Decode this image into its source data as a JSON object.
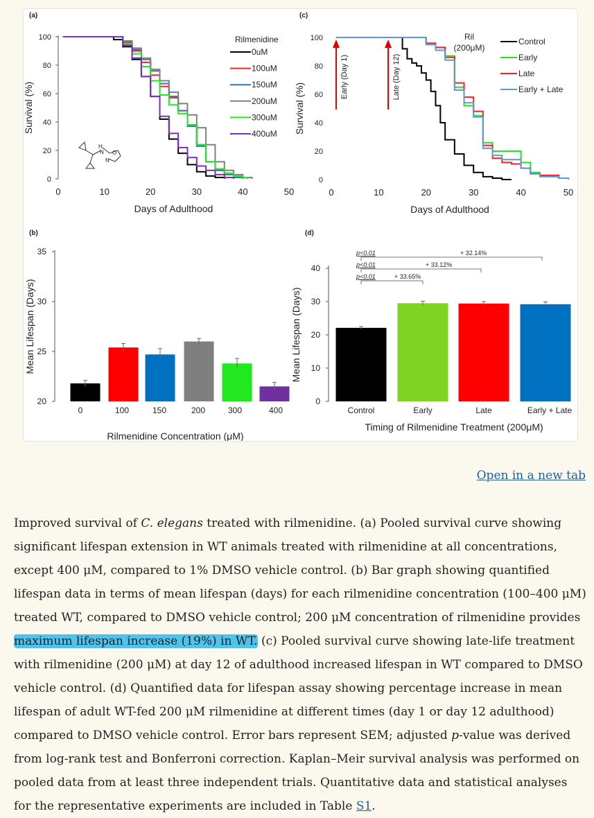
{
  "open_link": "Open in a new tab",
  "caption": {
    "p1": "Improved survival of ",
    "species": "C. elegans",
    "p2": " treated with rilmenidine. (a) Pooled survival curve showing significant lifespan extension in WT animals treated with rilmenidine at all concentrations, except 400 μM, compared to 1% DMSO vehicle control. (b) Bar graph showing quantified lifespan data in terms of mean lifespan (days) for each rilmenidine concentration (100–400 μM) treated WT, compared to DMSO vehicle control; 200 μM concentration of rilmenidine provides ",
    "highlight": "maximum lifespan increase (19%) in WT.",
    "p3": " (c) Pooled survival curve showing late-life treatment with rilmenidine (200 μM) at day 12 of adulthood increased lifespan in WT compared to DMSO vehicle control. (d) Quantified data for lifespan assay showing percentage increase in mean lifespan of adult WT-fed 200 μM rilmenidine at different times (day 1 or day 12 adulthood) compared to DMSO vehicle control. Error bars represent SEM; adjusted ",
    "pitalic": "p",
    "p4": "-value was derived from log-rank test and Bonferroni correction. Kaplan–Meir survival analysis was performed on pooled data from at least three independent trials. Quantitative data and statistical analyses for the representative experiments are included in Table ",
    "table_link": "S1",
    "p5": "."
  },
  "chart_data": [
    {
      "panel": "(a)",
      "type": "line",
      "xlabel": "Days of Adulthood",
      "ylabel": "Survival (%)",
      "xlim": [
        0,
        50
      ],
      "ylim": [
        0,
        100
      ],
      "xticks": [
        0,
        10,
        20,
        30,
        40,
        50
      ],
      "yticks": [
        0,
        20,
        40,
        60,
        80,
        100
      ],
      "legend_title": "Rilmenidine",
      "legend_position": "top-right",
      "series": [
        {
          "name": "0uM",
          "color": "#000000",
          "x": [
            1,
            10,
            12,
            14,
            16,
            18,
            20,
            22,
            24,
            26,
            28,
            30,
            32,
            34,
            36
          ],
          "y": [
            100,
            100,
            98,
            93,
            84,
            72,
            58,
            42,
            28,
            18,
            10,
            5,
            2,
            1,
            0
          ]
        },
        {
          "name": "100uM",
          "color": "#ff1f1f",
          "x": [
            1,
            12,
            14,
            16,
            18,
            20,
            22,
            24,
            26,
            28,
            30,
            32,
            34,
            36,
            38,
            40
          ],
          "y": [
            100,
            100,
            96,
            90,
            82,
            73,
            65,
            57,
            48,
            38,
            24,
            12,
            6,
            3,
            1,
            0
          ]
        },
        {
          "name": "150uM",
          "color": "#2f75c6",
          "x": [
            1,
            12,
            14,
            16,
            18,
            20,
            22,
            24,
            26,
            28,
            30,
            32,
            34,
            36,
            38,
            40
          ],
          "y": [
            100,
            100,
            97,
            91,
            84,
            76,
            67,
            58,
            48,
            37,
            23,
            12,
            6,
            3,
            1,
            0
          ]
        },
        {
          "name": "200uM",
          "color": "#808080",
          "x": [
            1,
            12,
            14,
            16,
            18,
            20,
            22,
            24,
            26,
            28,
            30,
            32,
            34,
            36,
            38,
            40,
            42
          ],
          "y": [
            100,
            100,
            97,
            92,
            85,
            77,
            69,
            61,
            53,
            45,
            36,
            24,
            12,
            6,
            3,
            1,
            0
          ]
        },
        {
          "name": "300uM",
          "color": "#1ee81e",
          "x": [
            1,
            12,
            14,
            16,
            18,
            20,
            22,
            24,
            26,
            28,
            30,
            32,
            34,
            36,
            38,
            40,
            41
          ],
          "y": [
            100,
            100,
            95,
            88,
            79,
            69,
            59,
            52,
            46,
            38,
            24,
            12,
            7,
            4,
            2,
            1,
            0
          ]
        },
        {
          "name": "400uM",
          "color": "#7a2fc4",
          "x": [
            1,
            12,
            14,
            16,
            18,
            20,
            22,
            24,
            26,
            28,
            30,
            32,
            34,
            36,
            38
          ],
          "y": [
            100,
            100,
            94,
            85,
            72,
            58,
            44,
            32,
            22,
            15,
            9,
            6,
            3,
            1,
            0
          ]
        }
      ],
      "annotation": "Rilmenidine structure (drawn)"
    },
    {
      "panel": "(b)",
      "type": "bar",
      "xlabel": "Rilmenidine Concentration (μM)",
      "ylabel": "Mean Lifespan (Days)",
      "ylim": [
        20,
        35
      ],
      "yticks": [
        20,
        25,
        30,
        35
      ],
      "categories": [
        "0",
        "100",
        "150",
        "200",
        "300",
        "400"
      ],
      "values": [
        21.8,
        25.4,
        24.7,
        26.0,
        23.8,
        21.5
      ],
      "errors": [
        0.3,
        0.4,
        0.6,
        0.3,
        0.5,
        0.4
      ],
      "colors": [
        "#000000",
        "#ff0000",
        "#0070c0",
        "#7f7f7f",
        "#22e822",
        "#7030a0"
      ]
    },
    {
      "panel": "(c)",
      "type": "line",
      "xlabel": "Days of Adulthood",
      "ylabel": "Survival (%)",
      "xlim": [
        0,
        50
      ],
      "ylim": [
        0,
        100
      ],
      "xticks": [
        0,
        10,
        20,
        30,
        40,
        50
      ],
      "yticks": [
        0,
        20,
        40,
        60,
        80,
        100
      ],
      "legend_title": "Ril (200μM)",
      "legend_position": "top-right",
      "arrows": [
        {
          "label": "Early (Day 1)",
          "x": 1
        },
        {
          "label": "Late (Day 12)",
          "x": 12
        }
      ],
      "series": [
        {
          "name": "Control",
          "color": "#000000",
          "x": [
            1,
            14,
            15,
            16,
            17,
            18,
            19,
            20,
            21,
            22,
            23,
            24,
            26,
            28,
            30,
            32,
            34,
            36,
            38
          ],
          "y": [
            100,
            100,
            92,
            85,
            82,
            80,
            75,
            70,
            62,
            52,
            40,
            28,
            18,
            10,
            5,
            2,
            1,
            0,
            0
          ]
        },
        {
          "name": "Early",
          "color": "#1ee81e",
          "x": [
            1,
            18,
            20,
            22,
            24,
            26,
            28,
            30,
            32,
            34,
            36,
            38,
            40,
            42,
            44,
            46,
            48,
            50
          ],
          "y": [
            100,
            100,
            95,
            93,
            87,
            65,
            52,
            45,
            26,
            20,
            20,
            20,
            12,
            5,
            3,
            2,
            1,
            0
          ]
        },
        {
          "name": "Late",
          "color": "#ff1f1f",
          "x": [
            1,
            18,
            20,
            22,
            24,
            26,
            28,
            30,
            32,
            34,
            36,
            38,
            40,
            42,
            44,
            46,
            48,
            50
          ],
          "y": [
            100,
            100,
            96,
            93,
            86,
            68,
            58,
            48,
            24,
            15,
            12,
            11,
            8,
            4,
            3,
            3,
            1,
            0
          ]
        },
        {
          "name": "Early + Late",
          "color": "#5b9bd5",
          "x": [
            1,
            18,
            20,
            22,
            24,
            26,
            28,
            30,
            32,
            34,
            36,
            38,
            40,
            42,
            44,
            46,
            48,
            50
          ],
          "y": [
            100,
            100,
            95,
            91,
            84,
            63,
            54,
            44,
            22,
            17,
            14,
            14,
            8,
            4,
            2,
            2,
            1,
            0
          ]
        }
      ]
    },
    {
      "panel": "(d)",
      "type": "bar",
      "xlabel": "Timing of Rilmenidine Treatment (200μM)",
      "ylabel": "Mean Lifespan (Days)",
      "ylim": [
        0,
        40
      ],
      "yticks": [
        0,
        10,
        20,
        30,
        40
      ],
      "categories": [
        "Control",
        "Early",
        "Late",
        "Early + Late"
      ],
      "values": [
        22.1,
        29.5,
        29.4,
        29.2
      ],
      "errors": [
        0.4,
        0.6,
        0.6,
        0.7
      ],
      "colors": [
        "#000000",
        "#7fd323",
        "#ff0000",
        "#0070c0"
      ],
      "comparisons": [
        {
          "p": "p<0.01",
          "increase": "+ 33.65%",
          "target": "Early"
        },
        {
          "p": "p<0.01",
          "increase": "+ 33.12%",
          "target": "Late"
        },
        {
          "p": "p<0.01",
          "increase": "+ 32.14%",
          "target": "Early + Late"
        }
      ]
    }
  ]
}
